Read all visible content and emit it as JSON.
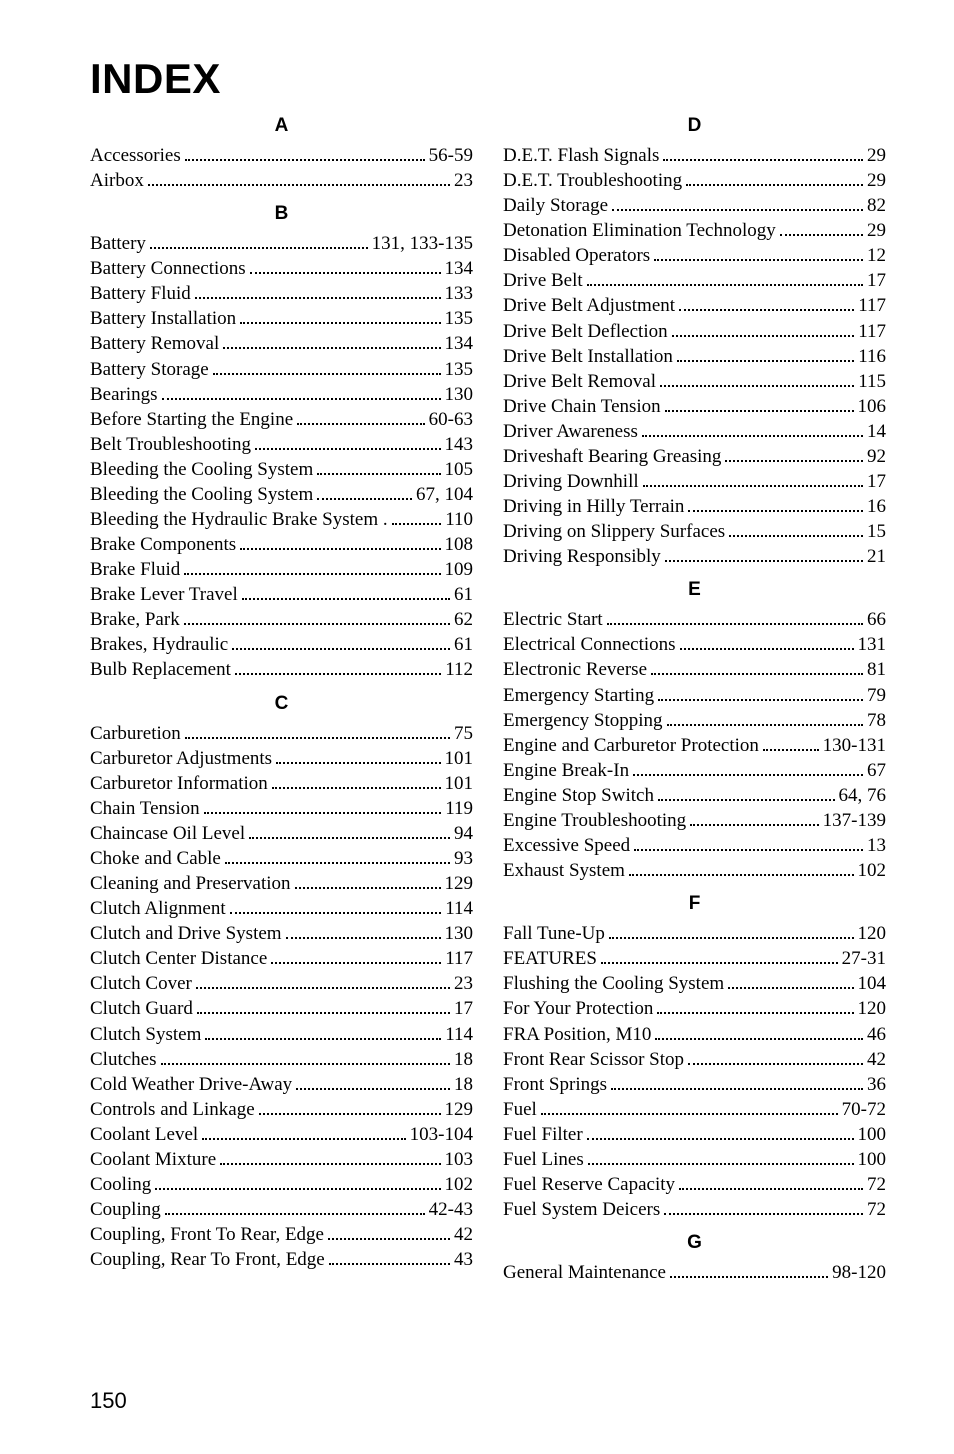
{
  "title": "INDEX",
  "page_number": "150",
  "columns": [
    {
      "sections": [
        {
          "letter": "A",
          "entries": [
            {
              "label": "Accessories",
              "page": "56-59"
            },
            {
              "label": "Airbox",
              "page": "23"
            }
          ]
        },
        {
          "letter": "B",
          "entries": [
            {
              "label": "Battery",
              "page": "131, 133-135"
            },
            {
              "label": "Battery Connections",
              "page": "134"
            },
            {
              "label": "Battery Fluid",
              "page": "133"
            },
            {
              "label": "Battery Installation",
              "page": "135"
            },
            {
              "label": "Battery Removal",
              "page": "134"
            },
            {
              "label": "Battery Storage",
              "page": "135"
            },
            {
              "label": "Bearings",
              "page": "130"
            },
            {
              "label": "Before Starting the Engine",
              "page": "60-63"
            },
            {
              "label": "Belt Troubleshooting",
              "page": "143"
            },
            {
              "label": "Bleeding the Cooling System",
              "page": "105"
            },
            {
              "label": "Bleeding the Cooling System",
              "page": "67, 104"
            },
            {
              "label": "Bleeding the Hydraulic Brake System .",
              "page": "110"
            },
            {
              "label": "Brake Components",
              "page": "108"
            },
            {
              "label": "Brake Fluid",
              "page": "109"
            },
            {
              "label": "Brake Lever Travel",
              "page": "61"
            },
            {
              "label": "Brake, Park",
              "page": "62"
            },
            {
              "label": "Brakes, Hydraulic",
              "page": "61"
            },
            {
              "label": "Bulb Replacement",
              "page": "112"
            }
          ]
        },
        {
          "letter": "C",
          "entries": [
            {
              "label": "Carburetion",
              "page": "75"
            },
            {
              "label": "Carburetor Adjustments",
              "page": "101"
            },
            {
              "label": "Carburetor Information",
              "page": "101"
            },
            {
              "label": "Chain Tension",
              "page": "119"
            },
            {
              "label": "Chaincase Oil Level",
              "page": "94"
            },
            {
              "label": "Choke and Cable",
              "page": "93"
            },
            {
              "label": "Cleaning and Preservation",
              "page": "129"
            },
            {
              "label": "Clutch Alignment",
              "page": "114"
            },
            {
              "label": "Clutch and Drive System",
              "page": "130"
            },
            {
              "label": "Clutch Center Distance",
              "page": "117"
            },
            {
              "label": "Clutch Cover",
              "page": "23"
            },
            {
              "label": "Clutch Guard",
              "page": "17"
            },
            {
              "label": "Clutch System",
              "page": "114"
            },
            {
              "label": "Clutches",
              "page": "18"
            },
            {
              "label": "Cold Weather Drive-Away",
              "page": "18"
            },
            {
              "label": "Controls and Linkage",
              "page": "129"
            },
            {
              "label": "Coolant Level",
              "page": "103-104"
            },
            {
              "label": "Coolant Mixture",
              "page": "103"
            },
            {
              "label": "Cooling",
              "page": "102"
            },
            {
              "label": "Coupling",
              "page": "42-43"
            },
            {
              "label": "Coupling, Front To Rear, Edge",
              "page": "42"
            },
            {
              "label": "Coupling, Rear To Front, Edge",
              "page": "43"
            }
          ]
        }
      ]
    },
    {
      "sections": [
        {
          "letter": "D",
          "entries": [
            {
              "label": "D.E.T. Flash Signals",
              "page": "29"
            },
            {
              "label": "D.E.T. Troubleshooting",
              "page": "29"
            },
            {
              "label": "Daily Storage",
              "page": "82"
            },
            {
              "label": "Detonation Elimination Technology",
              "page": "29"
            },
            {
              "label": "Disabled Operators",
              "page": "12"
            },
            {
              "label": "Drive Belt",
              "page": "17"
            },
            {
              "label": "Drive Belt Adjustment",
              "page": "117"
            },
            {
              "label": "Drive Belt Deflection",
              "page": "117"
            },
            {
              "label": "Drive Belt Installation",
              "page": "116"
            },
            {
              "label": "Drive Belt Removal",
              "page": "115"
            },
            {
              "label": "Drive Chain Tension",
              "page": "106"
            },
            {
              "label": "Driver Awareness",
              "page": "14"
            },
            {
              "label": "Driveshaft Bearing Greasing",
              "page": "92"
            },
            {
              "label": "Driving Downhill",
              "page": "17"
            },
            {
              "label": "Driving in Hilly Terrain",
              "page": "16"
            },
            {
              "label": "Driving on Slippery Surfaces",
              "page": "15"
            },
            {
              "label": "Driving Responsibly",
              "page": "21"
            }
          ]
        },
        {
          "letter": "E",
          "entries": [
            {
              "label": "Electric Start",
              "page": "66"
            },
            {
              "label": "Electrical Connections",
              "page": "131"
            },
            {
              "label": "Electronic Reverse",
              "page": "81"
            },
            {
              "label": "Emergency Starting",
              "page": "79"
            },
            {
              "label": "Emergency Stopping",
              "page": "78"
            },
            {
              "label": "Engine and Carburetor Protection",
              "page": "130-131"
            },
            {
              "label": "Engine Break-In",
              "page": "67"
            },
            {
              "label": "Engine Stop Switch",
              "page": "64, 76"
            },
            {
              "label": "Engine Troubleshooting",
              "page": "137-139"
            },
            {
              "label": "Excessive Speed",
              "page": "13"
            },
            {
              "label": "Exhaust System",
              "page": "102"
            }
          ]
        },
        {
          "letter": "F",
          "entries": [
            {
              "label": "Fall Tune-Up",
              "page": "120"
            },
            {
              "label": "FEATURES",
              "page": "27-31"
            },
            {
              "label": "Flushing the Cooling System",
              "page": "104"
            },
            {
              "label": "For Your Protection",
              "page": "120"
            },
            {
              "label": "FRA Position, M10",
              "page": "46"
            },
            {
              "label": "Front Rear Scissor Stop",
              "page": "42"
            },
            {
              "label": "Front Springs",
              "page": "36"
            },
            {
              "label": "Fuel",
              "page": "70-72"
            },
            {
              "label": "Fuel Filter",
              "page": "100"
            },
            {
              "label": "Fuel Lines",
              "page": "100"
            },
            {
              "label": "Fuel Reserve Capacity",
              "page": "72"
            },
            {
              "label": "Fuel System Deicers",
              "page": "72"
            }
          ]
        },
        {
          "letter": "G",
          "entries": [
            {
              "label": "General Maintenance",
              "page": "98-120"
            }
          ]
        }
      ]
    }
  ]
}
